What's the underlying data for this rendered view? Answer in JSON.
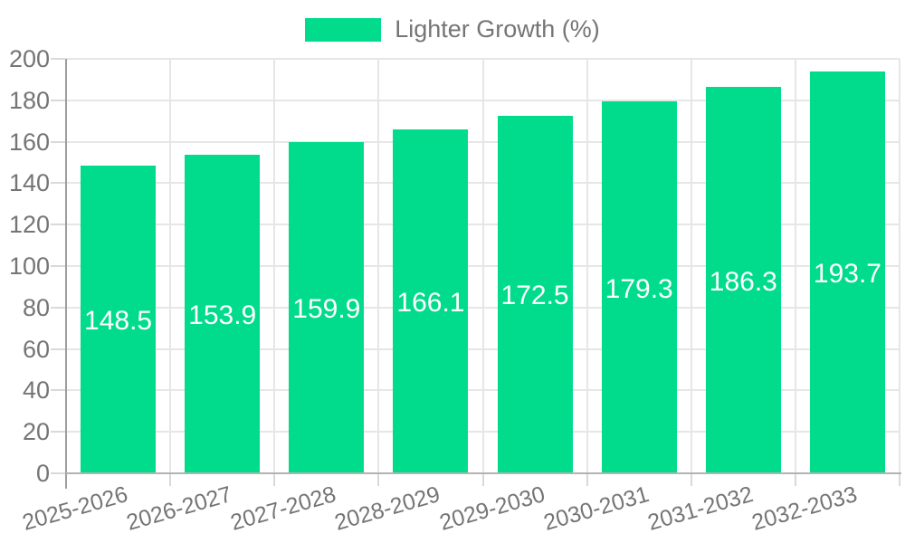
{
  "legend": {
    "label": "Lighter Growth (%)"
  },
  "colors": {
    "bar": "#00DC8C",
    "grid": "#e6e6e6",
    "axis_line": "#9e9e9e",
    "baseline": "#b3b3b3",
    "tick": "#d9d9d9",
    "label_text": "#757575",
    "value_text": "#ffffff",
    "background": "#ffffff"
  },
  "chart_data": {
    "type": "bar",
    "title": "",
    "categories": [
      "2025-2026",
      "2026-2027",
      "2027-2028",
      "2028-2029",
      "2029-2030",
      "2030-2031",
      "2031-2032",
      "2032-2033"
    ],
    "series": [
      {
        "name": "Lighter Growth (%)",
        "values": [
          148.5,
          153.9,
          159.9,
          166.1,
          172.5,
          179.3,
          186.3,
          193.7
        ]
      }
    ],
    "value_labels": [
      "148.5",
      "153.9",
      "159.9",
      "166.1",
      "172.5",
      "179.3",
      "186.3",
      "193.7"
    ],
    "ytick_labels": [
      "0",
      "20",
      "40",
      "60",
      "80",
      "100",
      "120",
      "140",
      "160",
      "180",
      "200"
    ],
    "xlabel": "",
    "ylabel": "",
    "ylim": [
      0,
      200
    ],
    "ytick_step": 20,
    "grid": true,
    "legend_position": "top-center"
  }
}
